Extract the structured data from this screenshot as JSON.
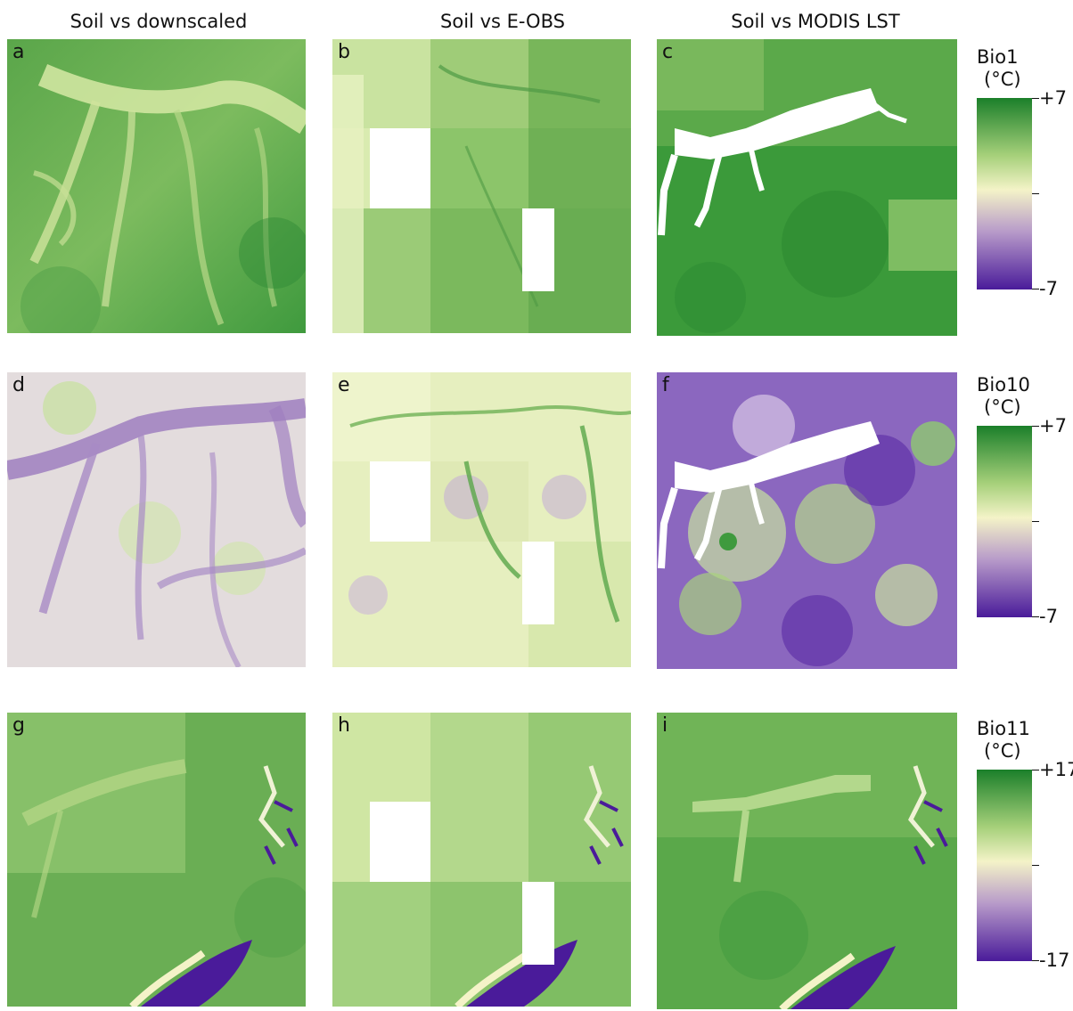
{
  "columns": [
    {
      "title": "Soil vs downscaled"
    },
    {
      "title": "Soil vs E-OBS"
    },
    {
      "title": "Soil vs MODIS LST"
    }
  ],
  "panels": [
    {
      "label": "a",
      "icon": "soil-vs-downscaled-bio1-map"
    },
    {
      "label": "b",
      "icon": "soil-vs-eobs-bio1-map"
    },
    {
      "label": "c",
      "icon": "soil-vs-modis-bio1-map"
    },
    {
      "label": "d",
      "icon": "soil-vs-downscaled-bio10-map"
    },
    {
      "label": "e",
      "icon": "soil-vs-eobs-bio10-map"
    },
    {
      "label": "f",
      "icon": "soil-vs-modis-bio10-map"
    },
    {
      "label": "g",
      "icon": "soil-vs-downscaled-bio11-map"
    },
    {
      "label": "h",
      "icon": "soil-vs-eobs-bio11-map"
    },
    {
      "label": "i",
      "icon": "soil-vs-modis-bio11-map"
    }
  ],
  "legends": [
    {
      "title": "Bio1",
      "unit": "(°C)",
      "max": "+7",
      "min": "-7"
    },
    {
      "title": "Bio10",
      "unit": "(°C)",
      "max": "+7",
      "min": "-7"
    },
    {
      "title": "Bio11",
      "unit": "(°C)",
      "max": "+17",
      "min": "-17"
    }
  ],
  "colors": {
    "high": "#1b7f2a",
    "mid_high": "#a6d07a",
    "neutral": "#f4f3c8",
    "mid_low": "#b79ac9",
    "low": "#4a1b9a",
    "nodata": "#ffffff"
  }
}
